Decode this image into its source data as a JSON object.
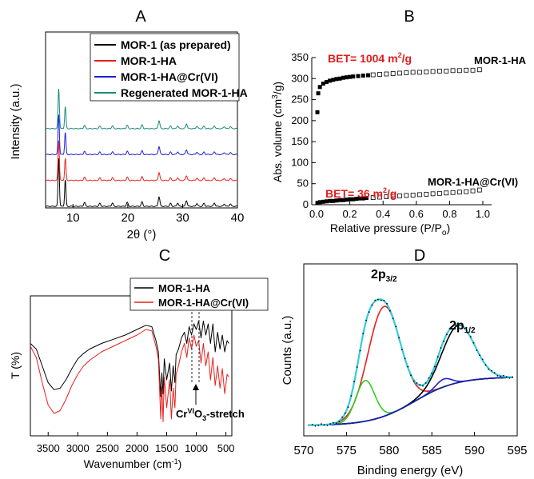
{
  "panel_letters": [
    "A",
    "B",
    "C",
    "D"
  ],
  "colors": {
    "black": "#000000",
    "red": "#e8201c",
    "blue": "#2020d8",
    "teal": "#1a8a80",
    "green": "#33cc22",
    "cyan": "#33ccdd",
    "navy": "#1020a0",
    "bet_red": "#e31b1b",
    "dashed_gray": "#333333"
  },
  "chart_data": [
    {
      "panel": "A",
      "type": "line",
      "xlabel": "2θ (°)",
      "ylabel": "Intensity (a.u.)",
      "xlim": [
        5,
        40
      ],
      "xticks": [
        "10",
        "20",
        "30",
        "40"
      ],
      "legend_position": "top",
      "series": [
        {
          "name": "MOR-1 (as prepared)",
          "color": "#000000",
          "offset": 0
        },
        {
          "name": "MOR-1-HA",
          "color": "#e8201c",
          "offset": 1
        },
        {
          "name": "MOR-1-HA@Cr(VI)",
          "color": "#2020d8",
          "offset": 2
        },
        {
          "name": "Regenerated MOR-1-HA",
          "color": "#1a8a80",
          "offset": 3
        }
      ],
      "peaks_2theta": [
        7.4,
        8.6,
        12.1,
        14.9,
        17.2,
        19.9,
        22.6,
        25.7,
        27.8,
        29.1,
        30.7,
        32.6,
        33.9,
        35.8,
        37.6,
        38.7
      ],
      "peak_heights": [
        1.0,
        0.55,
        0.08,
        0.06,
        0.07,
        0.08,
        0.09,
        0.2,
        0.06,
        0.07,
        0.12,
        0.06,
        0.06,
        0.07,
        0.05,
        0.05
      ]
    },
    {
      "panel": "B",
      "type": "scatter",
      "xlabel": "Relative pressure (P/P",
      "xlabel_sub": "o",
      "xlabel_end": ")",
      "ylabel": "Abs. volume (cm",
      "ylabel_sup": "3",
      "ylabel_end": "/g)",
      "xlim": [
        0,
        1.0
      ],
      "ylim": [
        0,
        350
      ],
      "xticks": [
        "0.0",
        "0.2",
        "0.4",
        "0.6",
        "0.8",
        "1.0"
      ],
      "yticks": [
        "0",
        "50",
        "100",
        "150",
        "200",
        "250",
        "300",
        "350"
      ],
      "bet_labels": [
        {
          "text": "BET= 1004 m",
          "sup": "2",
          "end": "/g"
        },
        {
          "text": "BET= 36 m",
          "sup": "2",
          "end": "/g"
        }
      ],
      "series": [
        {
          "name": "MOR-1-HA",
          "adsorption": {
            "x": [
              0.005,
              0.01,
              0.02,
              0.04,
              0.06,
              0.08,
              0.1,
              0.12,
              0.14,
              0.16,
              0.18,
              0.2,
              0.22,
              0.25,
              0.28,
              0.31
            ],
            "y": [
              220,
              265,
              280,
              288,
              292,
              295,
              297,
              299,
              300,
              302,
              303,
              304,
              305,
              306,
              307,
              308
            ]
          },
          "desorption": {
            "x": [
              0.34,
              0.38,
              0.42,
              0.46,
              0.5,
              0.54,
              0.58,
              0.62,
              0.66,
              0.7,
              0.74,
              0.78,
              0.82,
              0.86,
              0.9,
              0.94,
              0.98
            ],
            "y": [
              309,
              310,
              311,
              312,
              313,
              314,
              315,
              315,
              316,
              317,
              318,
              318,
              319,
              319,
              320,
              320,
              321
            ]
          }
        },
        {
          "name": "MOR-1-HA@Cr(VI)",
          "adsorption": {
            "x": [
              0.005,
              0.02,
              0.04,
              0.06,
              0.08,
              0.1,
              0.12,
              0.14,
              0.16,
              0.18,
              0.2,
              0.22,
              0.24,
              0.26,
              0.28,
              0.3
            ],
            "y": [
              4,
              6,
              7,
              8,
              9,
              9,
              10,
              11,
              11,
              12,
              13,
              13,
              14,
              15,
              15,
              16
            ]
          },
          "desorption": {
            "x": [
              0.34,
              0.38,
              0.42,
              0.46,
              0.5,
              0.54,
              0.58,
              0.62,
              0.66,
              0.7,
              0.74,
              0.78,
              0.82,
              0.86,
              0.9,
              0.94,
              0.98
            ],
            "y": [
              17,
              18,
              19,
              20,
              21,
              22,
              23,
              24,
              25,
              26,
              27,
              28,
              29,
              30,
              31,
              33,
              35
            ]
          }
        }
      ]
    },
    {
      "panel": "C",
      "type": "line",
      "xlabel": "Wavenumber (cm",
      "xlabel_sup": "-1",
      "xlabel_end": ")",
      "ylabel": "T (%)",
      "xlim": [
        3800,
        400
      ],
      "xticks": [
        "3500",
        "3000",
        "2500",
        "2000",
        "1500",
        "1000",
        "500"
      ],
      "legend_position": "top-right",
      "annotation": {
        "text": "Cr",
        "sup": "VI",
        "mid": "O",
        "sub": "3",
        "end": "-stretch",
        "x": 920
      },
      "series": [
        {
          "name": "MOR-1-HA",
          "color": "#000000",
          "x": [
            3800,
            3700,
            3600,
            3500,
            3400,
            3300,
            3200,
            3100,
            3000,
            2900,
            2800,
            2600,
            2400,
            2200,
            2000,
            1850,
            1750,
            1680,
            1640,
            1600,
            1580,
            1560,
            1540,
            1500,
            1450,
            1420,
            1390,
            1360,
            1340,
            1300,
            1250,
            1200,
            1160,
            1120,
            1080,
            1040,
            1000,
            960,
            920,
            880,
            840,
            800,
            760,
            720,
            680,
            640,
            600,
            560,
            520,
            480,
            450
          ],
          "y": [
            66,
            62,
            50,
            38,
            33,
            34,
            40,
            48,
            55,
            59,
            62,
            66,
            69,
            72,
            76,
            79,
            78,
            68,
            60,
            28,
            45,
            30,
            55,
            40,
            52,
            32,
            50,
            38,
            58,
            62,
            70,
            74,
            66,
            78,
            72,
            80,
            76,
            82,
            70,
            82,
            72,
            80,
            66,
            80,
            60,
            74,
            62,
            72,
            60,
            68,
            66
          ]
        },
        {
          "name": "MOR-1-HA@Cr(VI)",
          "color": "#e8201c",
          "x": [
            3800,
            3700,
            3600,
            3500,
            3400,
            3300,
            3200,
            3100,
            3000,
            2900,
            2800,
            2600,
            2400,
            2200,
            2000,
            1850,
            1750,
            1680,
            1640,
            1600,
            1580,
            1560,
            1540,
            1500,
            1450,
            1420,
            1390,
            1360,
            1340,
            1300,
            1250,
            1200,
            1160,
            1120,
            1080,
            1040,
            1000,
            960,
            920,
            880,
            840,
            800,
            760,
            720,
            680,
            640,
            600,
            560,
            520,
            480,
            450
          ],
          "y": [
            64,
            56,
            38,
            22,
            16,
            18,
            26,
            36,
            44,
            50,
            54,
            60,
            64,
            68,
            72,
            76,
            75,
            64,
            55,
            12,
            35,
            10,
            42,
            20,
            40,
            12,
            34,
            20,
            44,
            50,
            60,
            66,
            56,
            70,
            62,
            72,
            64,
            68,
            52,
            66,
            50,
            60,
            40,
            56,
            36,
            50,
            34,
            48,
            30,
            44,
            42
          ]
        }
      ]
    },
    {
      "panel": "D",
      "type": "line",
      "xlabel": "Binding energy (eV)",
      "ylabel": "Counts (a.u.)",
      "xlim": [
        570,
        595
      ],
      "xticks": [
        "570",
        "575",
        "580",
        "585",
        "590",
        "595"
      ],
      "peak_labels": [
        {
          "text": "2p",
          "sub": "3/2",
          "x": 579.5
        },
        {
          "text": "2p",
          "sub": "1/2",
          "x": 588.2
        }
      ],
      "series": [
        {
          "name": "raw (dotted)",
          "color": "#000000"
        },
        {
          "name": "envelope",
          "color": "#33ccdd"
        },
        {
          "name": "Cr 2p3/2 main",
          "color": "#e8201c"
        },
        {
          "name": "Cr 2p3/2 low",
          "color": "#33cc22"
        },
        {
          "name": "Cr 2p1/2 main",
          "color": "#000000"
        },
        {
          "name": "Cr 2p1/2 minor",
          "color": "#2020d8"
        },
        {
          "name": "background",
          "color": "#1020a0"
        }
      ]
    }
  ]
}
